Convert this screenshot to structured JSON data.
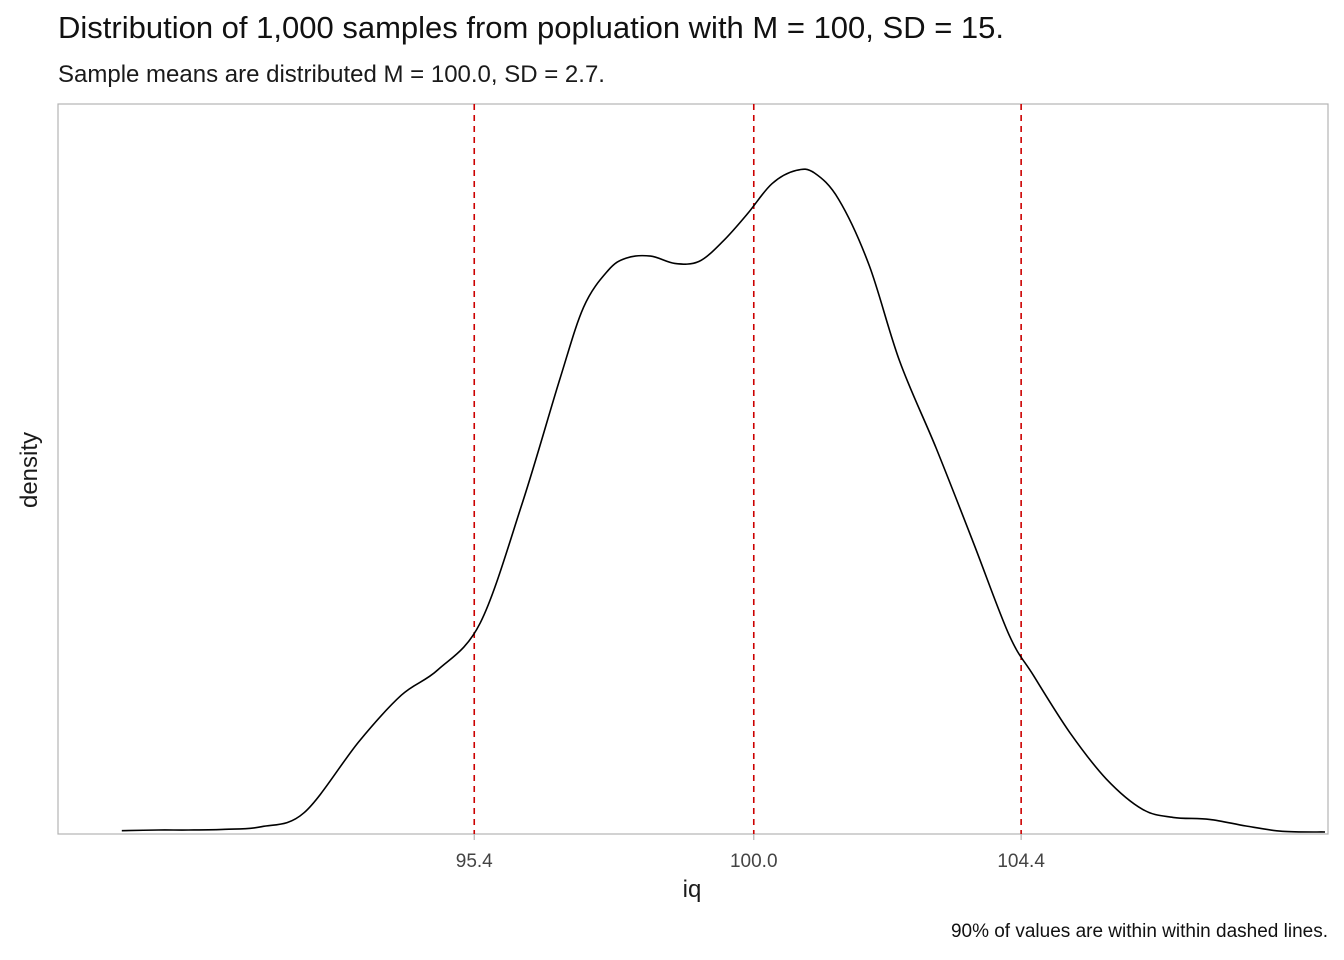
{
  "chart_data": {
    "type": "line",
    "title": "Distribution of 1,000 samples from popluation with M = 100, SD = 15.",
    "subtitle": "Sample means are distributed M = 100.0, SD = 2.7.",
    "caption": "90% of values are within within dashed lines.",
    "xlabel": "iq",
    "ylabel": "density",
    "xlim": [
      88.55,
      109.45
    ],
    "ylim": [
      0,
      1
    ],
    "x_ticks": [
      {
        "value": 95.4,
        "label": "95.4"
      },
      {
        "value": 100.0,
        "label": "100.0"
      },
      {
        "value": 104.4,
        "label": "104.4"
      }
    ],
    "y_ticks_shown": false,
    "grid": false,
    "series": [
      {
        "line_color": "#000000",
        "x": [
          89.6,
          90.2,
          90.7,
          91.3,
          91.9,
          92.6,
          93.5,
          94.2,
          94.8,
          95.5,
          96.2,
          96.8,
          97.2,
          97.6,
          97.9,
          98.3,
          98.7,
          99.1,
          99.5,
          99.9,
          100.3,
          100.7,
          101.0,
          101.4,
          101.9,
          102.4,
          103.0,
          103.6,
          104.2,
          104.6,
          105.2,
          105.8,
          106.4,
          106.9,
          107.5,
          108.1,
          108.7,
          109.4
        ],
        "y": [
          0.005,
          0.006,
          0.006,
          0.007,
          0.011,
          0.032,
          0.139,
          0.209,
          0.247,
          0.318,
          0.501,
          0.682,
          0.793,
          0.848,
          0.867,
          0.87,
          0.859,
          0.862,
          0.893,
          0.934,
          0.979,
          0.999,
          0.995,
          0.955,
          0.856,
          0.712,
          0.581,
          0.442,
          0.3,
          0.239,
          0.153,
          0.083,
          0.037,
          0.025,
          0.022,
          0.012,
          0.004,
          0.003
        ]
      }
    ],
    "reference_lines": [
      {
        "x": 95.4,
        "color": "#cc0000",
        "style": "dashed"
      },
      {
        "x": 100.0,
        "color": "#cc0000",
        "style": "dashed"
      },
      {
        "x": 104.4,
        "color": "#cc0000",
        "style": "dashed"
      }
    ],
    "panel_border_color": "#b3b3b3"
  }
}
